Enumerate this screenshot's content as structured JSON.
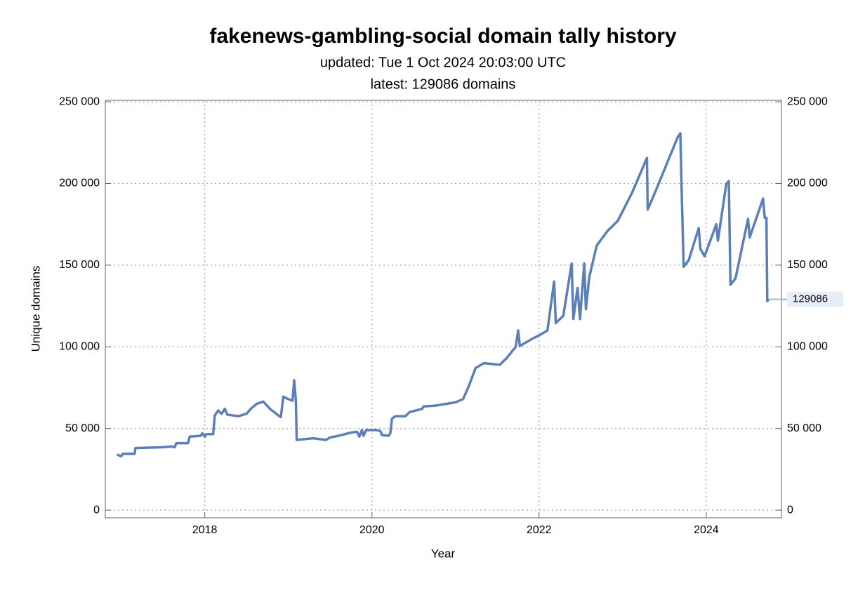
{
  "chart_data": {
    "type": "line",
    "title": "fakenews-gambling-social domain tally history",
    "subtitle": [
      "updated: Tue 1 Oct 2024 20:03:00 UTC",
      "latest: 129086 domains"
    ],
    "x_label": "Year",
    "y_label": "Unique domains",
    "color": "#5b7fb6",
    "grid": true,
    "xlim": [
      2016.81,
      2024.9
    ],
    "xticks": [
      2018,
      2020,
      2022,
      2024
    ],
    "ylim": [
      -4700,
      250900
    ],
    "yticks": [
      0,
      {
        "value": 50000,
        "label": "50 000"
      },
      {
        "value": 100000,
        "label": "100 000"
      },
      {
        "value": 150000,
        "label": "150 000"
      },
      {
        "value": 200000,
        "label": "200 000"
      },
      {
        "value": 250000,
        "label": "250 000"
      }
    ],
    "y2lim": [
      -4700,
      250900
    ],
    "y2ticks": [
      0,
      {
        "value": 50000,
        "label": "50 000"
      },
      {
        "value": 100000,
        "label": "100 000"
      },
      {
        "value": 150000,
        "label": "150 000"
      },
      {
        "value": 200000,
        "label": "200 000"
      },
      {
        "value": 250000,
        "label": "250 000"
      }
    ],
    "latest_label": {
      "value": 129086,
      "label": "129086"
    },
    "x": [
      2016.95,
      2017.0,
      2017.02,
      2017.16,
      2017.17,
      2017.5,
      2017.6,
      2017.64,
      2017.66,
      2017.8,
      2017.82,
      2017.95,
      2017.97,
      2018.0,
      2018.02,
      2018.1,
      2018.12,
      2018.16,
      2018.2,
      2018.24,
      2018.27,
      2018.4,
      2018.5,
      2018.55,
      2018.62,
      2018.7,
      2018.78,
      2018.88,
      2018.91,
      2018.94,
      2019.0,
      2019.05,
      2019.07,
      2019.09,
      2019.1,
      2019.2,
      2019.3,
      2019.45,
      2019.5,
      2019.6,
      2019.75,
      2019.82,
      2019.85,
      2019.88,
      2019.9,
      2019.93,
      2020.05,
      2020.1,
      2020.12,
      2020.2,
      2020.22,
      2020.24,
      2020.28,
      2020.4,
      2020.45,
      2020.6,
      2020.62,
      2020.76,
      2021.0,
      2021.09,
      2021.16,
      2021.24,
      2021.34,
      2021.53,
      2021.61,
      2021.72,
      2021.75,
      2021.77,
      2021.92,
      2022.0,
      2022.1,
      2022.18,
      2022.2,
      2022.29,
      2022.39,
      2022.41,
      2022.46,
      2022.49,
      2022.54,
      2022.56,
      2022.6,
      2022.69,
      2022.82,
      2022.94,
      2023.11,
      2023.29,
      2023.3,
      2023.4,
      2023.66,
      2023.69,
      2023.7,
      2023.73,
      2023.79,
      2023.91,
      2023.93,
      2023.98,
      2024.12,
      2024.14,
      2024.24,
      2024.27,
      2024.29,
      2024.35,
      2024.5,
      2024.52,
      2024.68,
      2024.7,
      2024.72,
      2024.73,
      2024.75
    ],
    "values": [
      34000,
      33000,
      34500,
      34500,
      38000,
      38500,
      39000,
      38500,
      41000,
      41000,
      45000,
      45500,
      47000,
      45000,
      46500,
      46500,
      58000,
      61000,
      59000,
      62000,
      58500,
      57500,
      59000,
      62000,
      65000,
      66500,
      62000,
      58000,
      57000,
      69500,
      68000,
      67000,
      79500,
      67000,
      43000,
      43500,
      44000,
      43000,
      44500,
      45500,
      47500,
      48000,
      45000,
      49000,
      45500,
      49000,
      49000,
      48500,
      46000,
      45500,
      47000,
      56000,
      57500,
      57500,
      60000,
      62000,
      63500,
      64000,
      66000,
      68000,
      76000,
      87000,
      90000,
      89000,
      93000,
      100000,
      110000,
      100500,
      105000,
      107000,
      110000,
      140000,
      114500,
      119000,
      151000,
      117000,
      136000,
      117000,
      151000,
      123000,
      142500,
      162000,
      171000,
      177000,
      194000,
      215600,
      184000,
      196000,
      228500,
      230700,
      207000,
      149000,
      153000,
      172700,
      160000,
      155500,
      175000,
      165000,
      199700,
      201500,
      138000,
      141800,
      178300,
      167000,
      190700,
      179000,
      179000,
      128000,
      129086
    ]
  }
}
